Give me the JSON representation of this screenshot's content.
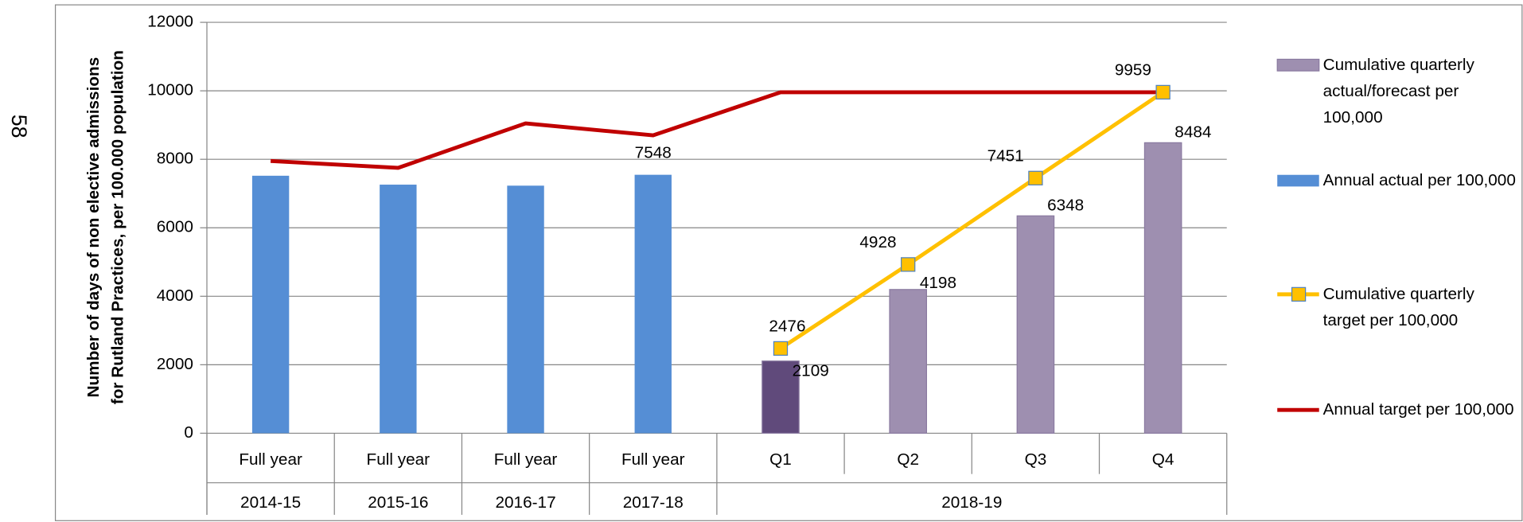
{
  "page_number": "58",
  "chart_data": {
    "type": "combo",
    "ylabel": [
      "Number of days of non elective admissions",
      "for Rutland Practices, per 100.000 population"
    ],
    "categories": [
      "Full year",
      "Full year",
      "Full year",
      "Full year",
      "Q1",
      "Q2",
      "Q3",
      "Q4"
    ],
    "category_groups": [
      "2014-15",
      "2015-16",
      "2016-17",
      "2017-18",
      "2018-19",
      "2018-19",
      "2018-19",
      "2018-19"
    ],
    "ylim": [
      0,
      12000
    ],
    "yticks": [
      0,
      2000,
      4000,
      6000,
      8000,
      10000,
      12000
    ],
    "grid": true,
    "legend": "right",
    "series": [
      {
        "name": "Cumulative quarterly actual/forecast per 100,000",
        "type": "bar",
        "color": "#9e8fb0",
        "colors": [
          null,
          null,
          null,
          null,
          "#604a7b",
          "#9e8fb0",
          "#9e8fb0",
          "#9e8fb0"
        ],
        "values": [
          null,
          null,
          null,
          null,
          2109,
          4198,
          6348,
          8484
        ],
        "value_labels": [
          null,
          null,
          null,
          null,
          "2109",
          "4198",
          "6348",
          "8484"
        ]
      },
      {
        "name": "Annual actual per 100,000",
        "type": "bar",
        "color": "#558ed5",
        "values": [
          7520,
          7260,
          7230,
          7548,
          null,
          null,
          null,
          null
        ],
        "value_labels": [
          null,
          null,
          null,
          "7548",
          null,
          null,
          null,
          null
        ]
      },
      {
        "name": "Cumulative quarterly target per 100,000",
        "type": "line",
        "color": "#ffc000",
        "marker": "square",
        "marker_edge": "#4f81bd",
        "values": [
          null,
          null,
          null,
          null,
          2476,
          4928,
          7451,
          9959
        ],
        "value_labels": [
          null,
          null,
          null,
          null,
          "2476",
          "4928",
          "7451",
          "9959"
        ]
      },
      {
        "name": "Annual target per 100,000",
        "type": "line",
        "color": "#c00000",
        "values": [
          7950,
          7750,
          9050,
          8700,
          9959,
          9959,
          9959,
          9959
        ]
      }
    ]
  }
}
